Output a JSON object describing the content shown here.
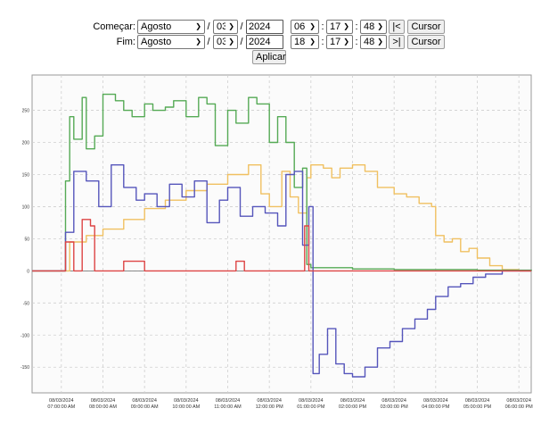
{
  "controls": {
    "start": {
      "label": "Começar:",
      "month": "Agosto",
      "day": "03",
      "year": "2024",
      "hour": "06",
      "minute": "17",
      "second": "48",
      "jump_label": "|<",
      "cursor_label": "Cursor"
    },
    "end": {
      "label": "Fim:",
      "month": "Agosto",
      "day": "03",
      "year": "2024",
      "hour": "18",
      "minute": "17",
      "second": "48",
      "jump_label": ">|",
      "cursor_label": "Cursor"
    },
    "date_separator": "/",
    "time_separator": ":",
    "apply_label": "Aplicar"
  },
  "chart_data": {
    "type": "line",
    "x_range": [
      "08/03/2024 06:17:48 AM",
      "08/03/2024 06:17:48 PM"
    ],
    "x_ticks": [
      {
        "date": "08/03/2024",
        "time": "07:00:00 AM",
        "h": 7
      },
      {
        "date": "08/03/2024",
        "time": "08:00:00 AM",
        "h": 8
      },
      {
        "date": "08/03/2024",
        "time": "09:00:00 AM",
        "h": 9
      },
      {
        "date": "08/03/2024",
        "time": "10:00:00 AM",
        "h": 10
      },
      {
        "date": "08/03/2024",
        "time": "11:00:00 AM",
        "h": 11
      },
      {
        "date": "08/03/2024",
        "time": "12:00:00 PM",
        "h": 12
      },
      {
        "date": "08/03/2024",
        "time": "01:00:00 PM",
        "h": 13
      },
      {
        "date": "08/03/2024",
        "time": "02:00:00 PM",
        "h": 14
      },
      {
        "date": "08/03/2024",
        "time": "03:00:00 PM",
        "h": 15
      },
      {
        "date": "08/03/2024",
        "time": "04:00:00 PM",
        "h": 16
      },
      {
        "date": "08/03/2024",
        "time": "05:00:00 PM",
        "h": 17
      },
      {
        "date": "08/03/2024",
        "time": "06:00:00 PM",
        "h": 18
      }
    ],
    "y_ticks": [
      "250",
      "200",
      "150",
      "100",
      "50",
      "0",
      "-50",
      "-100",
      "-150"
    ],
    "ylim": [
      -190,
      305
    ],
    "grid": true,
    "series": [
      {
        "color": "#f0c060",
        "x": [
          6.3,
          7.0,
          7.2,
          7.6,
          8.0,
          8.5,
          9.0,
          9.5,
          10.0,
          10.5,
          11.0,
          11.5,
          11.8,
          12.0,
          12.3,
          12.5,
          12.7,
          12.9,
          13.0,
          13.3,
          13.5,
          13.7,
          14.0,
          14.3,
          14.6,
          15.0,
          15.3,
          15.6,
          15.9,
          16.0,
          16.2,
          16.4,
          16.6,
          16.8,
          17.0,
          17.3,
          17.6,
          18.0,
          18.3
        ],
        "y": [
          0,
          0,
          45,
          55,
          65,
          80,
          97,
          110,
          125,
          135,
          150,
          165,
          120,
          100,
          155,
          115,
          90,
          145,
          165,
          160,
          145,
          160,
          165,
          155,
          130,
          120,
          115,
          105,
          100,
          55,
          45,
          50,
          30,
          35,
          20,
          8,
          2,
          0,
          0
        ]
      },
      {
        "color": "#55aa55",
        "x": [
          6.3,
          7.0,
          7.1,
          7.2,
          7.3,
          7.5,
          7.6,
          7.8,
          8.0,
          8.3,
          8.5,
          8.7,
          9.0,
          9.2,
          9.5,
          9.7,
          10.0,
          10.3,
          10.5,
          10.7,
          11.0,
          11.2,
          11.5,
          11.7,
          12.0,
          12.2,
          12.4,
          12.6,
          12.8,
          12.9,
          13.0,
          13.5,
          14.0,
          15.0,
          16.0,
          17.0,
          18.3
        ],
        "y": [
          0,
          0,
          140,
          240,
          205,
          270,
          190,
          210,
          275,
          265,
          250,
          240,
          260,
          250,
          255,
          265,
          240,
          270,
          260,
          195,
          250,
          230,
          270,
          260,
          200,
          240,
          200,
          130,
          160,
          10,
          5,
          5,
          3,
          2,
          2,
          1,
          0
        ]
      },
      {
        "color": "#5555bb",
        "x": [
          6.3,
          7.0,
          7.1,
          7.3,
          7.6,
          7.9,
          8.2,
          8.5,
          8.8,
          9.0,
          9.3,
          9.6,
          9.9,
          10.2,
          10.5,
          10.8,
          11.0,
          11.3,
          11.6,
          11.9,
          12.2,
          12.4,
          12.6,
          12.8,
          12.95,
          13.05,
          13.2,
          13.4,
          13.6,
          13.8,
          14.0,
          14.3,
          14.6,
          14.9,
          15.2,
          15.5,
          15.8,
          16.0,
          16.3,
          16.6,
          16.9,
          17.2,
          17.6,
          18.0,
          18.3
        ],
        "y": [
          0,
          0,
          60,
          155,
          140,
          100,
          165,
          130,
          110,
          120,
          100,
          135,
          115,
          140,
          75,
          110,
          130,
          85,
          100,
          90,
          70,
          150,
          155,
          40,
          100,
          -160,
          -130,
          -90,
          -145,
          -160,
          -165,
          -150,
          -120,
          -110,
          -90,
          -75,
          -60,
          -40,
          -25,
          -20,
          -10,
          -5,
          0,
          0,
          0
        ]
      },
      {
        "color": "#dd4444",
        "x": [
          6.3,
          7.0,
          7.1,
          7.3,
          7.5,
          7.7,
          7.8,
          8.0,
          8.5,
          9.0,
          10.0,
          11.0,
          11.2,
          11.3,
          11.4,
          12.0,
          12.8,
          12.85,
          12.95,
          13.0,
          14.0,
          18.3
        ],
        "y": [
          0,
          0,
          45,
          0,
          80,
          70,
          0,
          0,
          15,
          0,
          0,
          0,
          15,
          15,
          0,
          0,
          0,
          70,
          0,
          0,
          0,
          0
        ]
      }
    ]
  }
}
